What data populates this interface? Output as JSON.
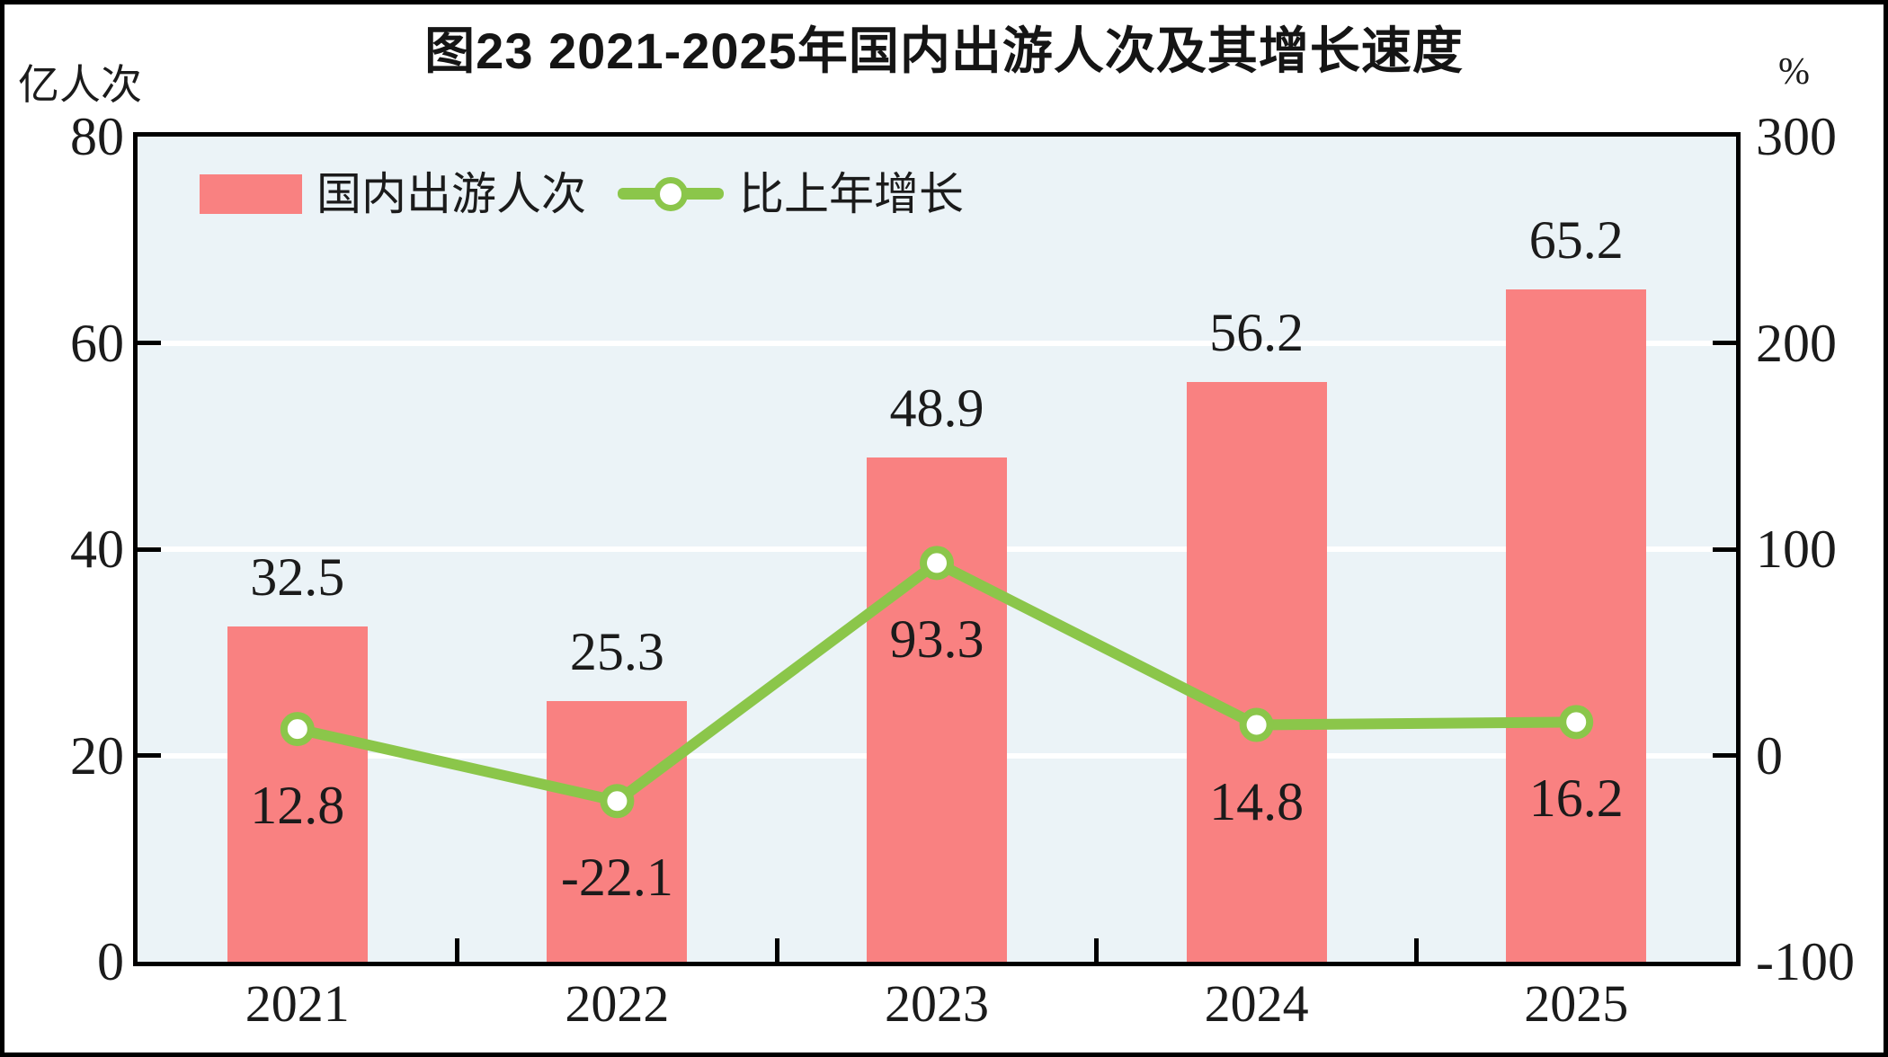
{
  "figure": {
    "title": "图23  2021-2025年国内出游人次及其增长速度"
  },
  "chart_data": {
    "type": "bar+line dual-axis combo",
    "title": "图23  2021-2025年国内出游人次及其增长速度",
    "categories": [
      "2021",
      "2022",
      "2023",
      "2024",
      "2025"
    ],
    "series": [
      {
        "name": "国内出游人次",
        "type": "bar",
        "axis": "left",
        "unit": "亿人次",
        "values": [
          32.5,
          25.3,
          48.9,
          56.2,
          65.2
        ],
        "color": "#f98181"
      },
      {
        "name": "比上年增长",
        "type": "line",
        "axis": "right",
        "unit": "%",
        "values": [
          12.8,
          -22.1,
          93.3,
          14.8,
          16.2
        ],
        "color": "#8bc64a",
        "marker": "circle, white fill, green stroke"
      }
    ],
    "left_axis": {
      "unit": "亿人次",
      "min": 0,
      "max": 80,
      "ticks": [
        80,
        60,
        40,
        20,
        0
      ]
    },
    "right_axis": {
      "unit": "%",
      "min": -100,
      "max": 300,
      "ticks": [
        300,
        200,
        100,
        0,
        -100
      ]
    },
    "legend_position": "top-left inside plot",
    "grid": "horizontal white gridlines at shared tick levels",
    "plot_background": "#ebf3f7"
  },
  "colors": {
    "bar": "#f98181",
    "line": "#8bc64a",
    "plot_bg": "#ebf3f7",
    "grid": "#ffffff",
    "text": "#1b1b1b",
    "border": "#000000"
  }
}
